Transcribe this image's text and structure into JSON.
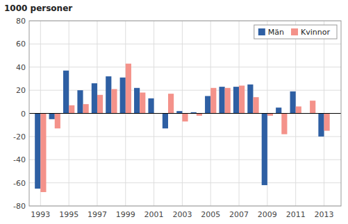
{
  "chart_data": {
    "type": "bar",
    "title": "1000 personer",
    "x": [
      1993,
      1994,
      1995,
      1996,
      1997,
      1998,
      1999,
      2000,
      2001,
      2002,
      2003,
      2004,
      2005,
      2006,
      2007,
      2008,
      2009,
      2010,
      2011,
      2012,
      2013
    ],
    "series": [
      {
        "name": "Män",
        "color": "#2E5FA3",
        "values": [
          -65,
          -5,
          37,
          20,
          26,
          32,
          31,
          22,
          13,
          -13,
          2,
          1,
          15,
          23,
          23,
          25,
          -62,
          5,
          19,
          0,
          -20
        ]
      },
      {
        "name": "Kvinnor",
        "color": "#F4928A",
        "values": [
          -68,
          -13,
          7,
          8,
          16,
          21,
          43,
          18,
          0,
          17,
          -7,
          -2,
          22,
          22,
          24,
          14,
          -2,
          -18,
          6,
          11,
          -15
        ]
      }
    ],
    "xlim": [
      1992.2,
      2014.2
    ],
    "xticks": [
      1993,
      1995,
      1997,
      1999,
      2001,
      2003,
      2005,
      2007,
      2009,
      2011,
      2013
    ],
    "ylim": [
      -80,
      80
    ],
    "yticks": [
      -80,
      -60,
      -40,
      -20,
      0,
      20,
      40,
      60,
      80
    ],
    "grid": true,
    "legend": "upper right"
  }
}
